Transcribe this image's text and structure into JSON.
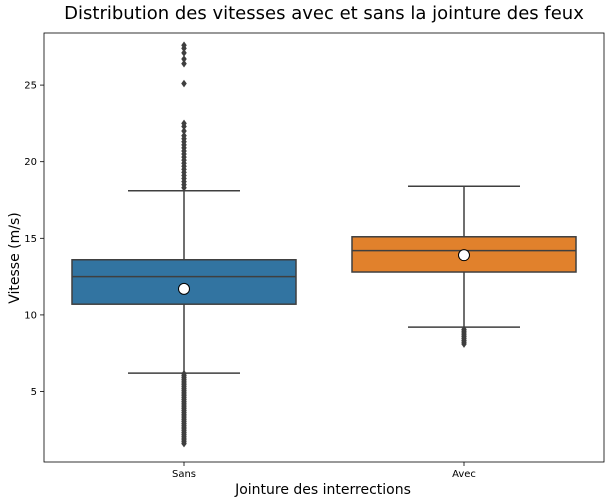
{
  "chart_data": {
    "type": "box",
    "title": "Distribution des vitesses avec et sans la jointure des feux",
    "xlabel": "Jointure des interrections",
    "ylabel": "Vitesse (m/s)",
    "ylim": [
      0.4,
      28.4
    ],
    "yticks": [
      5,
      10,
      15,
      20,
      25
    ],
    "categories": [
      "Sans",
      "Avec"
    ],
    "grid": false,
    "legend": "none",
    "boxes": [
      {
        "name": "Sans",
        "color": "#3274a1",
        "q1": 10.7,
        "median": 12.5,
        "q3": 13.6,
        "whisker_low": 6.2,
        "whisker_high": 18.1,
        "mean": 11.7,
        "outliers_low_range": [
          1.6,
          6.2
        ],
        "outliers_high": [
          18.3,
          18.5,
          18.7,
          18.9,
          19.1,
          19.3,
          19.5,
          19.7,
          19.9,
          20.1,
          20.3,
          20.5,
          20.7,
          20.9,
          21.1,
          21.3,
          21.5,
          21.7,
          22.0,
          22.3,
          22.5,
          25.1,
          26.4,
          26.7,
          27.1,
          27.4,
          27.6
        ]
      },
      {
        "name": "Avec",
        "color": "#e1812c",
        "q1": 12.8,
        "median": 14.2,
        "q3": 15.1,
        "whisker_low": 9.2,
        "whisker_high": 18.4,
        "mean": 13.9,
        "outliers_low_range": [
          8.1,
          9.1
        ],
        "outliers_high": []
      }
    ]
  }
}
